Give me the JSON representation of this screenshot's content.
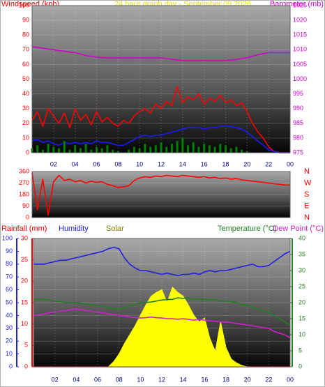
{
  "chart_data": [
    {
      "type": "line",
      "title": "24 hour graph day - September 09 2026",
      "ylabel": "Windspeed (kph)",
      "x": [
        0,
        0.5,
        1,
        1.5,
        2,
        2.5,
        3,
        3.5,
        4,
        4.5,
        5,
        5.5,
        6,
        6.5,
        7,
        7.5,
        8,
        8.5,
        9,
        9.5,
        10,
        10.5,
        11,
        11.5,
        12,
        12.5,
        13,
        13.5,
        14,
        14.5,
        15,
        15.5,
        16,
        16.5,
        17,
        17.5,
        18,
        18.5,
        19,
        19.5,
        20,
        20.5,
        21,
        21.5,
        22,
        22.5,
        23,
        23.5,
        24
      ],
      "xlim": [
        0,
        24
      ],
      "xticks": [
        {
          "value": 2,
          "label": "02"
        },
        {
          "value": 4,
          "label": "04"
        },
        {
          "value": 6,
          "label": "06"
        },
        {
          "value": 8,
          "label": "08"
        },
        10,
        12,
        14,
        16,
        18,
        20,
        22,
        {
          "value": 24,
          "label": "00"
        }
      ],
      "ylim": [
        0,
        100
      ],
      "yticks": [
        0,
        10,
        20,
        30,
        40,
        50,
        60,
        70,
        80,
        90,
        100
      ],
      "y2lim": [
        975,
        1025
      ],
      "y2ticks": [
        975,
        980,
        985,
        990,
        995,
        1000,
        1005,
        1010,
        1015,
        1020,
        1025
      ],
      "grid": true,
      "series": [
        {
          "color": "#ff0000",
          "values": [
            22,
            28,
            18,
            30,
            25,
            20,
            27,
            17,
            30,
            22,
            26,
            19,
            28,
            21,
            24,
            20,
            18,
            22,
            20,
            25,
            28,
            30,
            27,
            33,
            30,
            35,
            32,
            45,
            34,
            38,
            36,
            40,
            33,
            37,
            35,
            39,
            34,
            36,
            32,
            34,
            28,
            20,
            14,
            10,
            4,
            1,
            0,
            0,
            0
          ]
        },
        {
          "color": "#1a1aff",
          "values": [
            8,
            9,
            7,
            8,
            6,
            5,
            7,
            6,
            7,
            6,
            7,
            6,
            8,
            7,
            7,
            6,
            5,
            5,
            7,
            9,
            11,
            12,
            11,
            12,
            12,
            13,
            14,
            15,
            16,
            17,
            17,
            17,
            16,
            17,
            17,
            18,
            18,
            18,
            17,
            16,
            14,
            11,
            8,
            5,
            2,
            1,
            0,
            0,
            0
          ]
        },
        {
          "color": "#008000",
          "style": "bars",
          "values": [
            3,
            5,
            2,
            6,
            4,
            3,
            8,
            2,
            5,
            3,
            6,
            2,
            4,
            3,
            5,
            2,
            1,
            0,
            2,
            4,
            3,
            6,
            4,
            5,
            7,
            4,
            6,
            8,
            10,
            5,
            7,
            4,
            6,
            5,
            4,
            6,
            5,
            3,
            4,
            2,
            1,
            0,
            0,
            0,
            0,
            0,
            0,
            0,
            0
          ]
        },
        {
          "name": "Barometer (mb)",
          "color": "#d000d0",
          "axis": "y2",
          "values": [
            1011,
            1010.8,
            1010.5,
            1010.2,
            1010,
            1009.7,
            1009.5,
            1009.2,
            1009,
            1008.5,
            1008,
            1007.8,
            1007.5,
            1007.3,
            1007.2,
            1007.2,
            1007.2,
            1007.2,
            1007.2,
            1007.2,
            1007.2,
            1007.2,
            1007.2,
            1007.2,
            1007.2,
            1007,
            1006.8,
            1006.5,
            1006.3,
            1006.3,
            1006.3,
            1006.3,
            1006.3,
            1006.3,
            1006.3,
            1006.3,
            1006.3,
            1006.5,
            1006.7,
            1007,
            1007.3,
            1007.8,
            1008.3,
            1008.7,
            1009,
            1009,
            1009,
            1009,
            1009
          ]
        }
      ]
    },
    {
      "type": "line",
      "x": [
        0,
        0.5,
        1,
        1.5,
        2,
        2.5,
        3,
        3.5,
        4,
        4.5,
        5,
        5.5,
        6,
        6.5,
        7,
        7.5,
        8,
        8.5,
        9,
        9.5,
        10,
        10.5,
        11,
        11.5,
        12,
        12.5,
        13,
        13.5,
        14,
        14.5,
        15,
        15.5,
        16,
        16.5,
        17,
        17.5,
        18,
        18.5,
        19,
        19.5,
        20,
        20.5,
        21,
        21.5,
        22,
        22.5,
        23,
        23.5,
        24
      ],
      "xlim": [
        0,
        24
      ],
      "ylim": [
        0,
        360
      ],
      "yticks": [
        0,
        90,
        180,
        270,
        360
      ],
      "y2lim": [
        0,
        360
      ],
      "y2ticks": [
        {
          "value": 360,
          "label": "N"
        },
        {
          "value": 270,
          "label": "W"
        },
        {
          "value": 180,
          "label": "S"
        },
        {
          "value": 90,
          "label": "E"
        },
        {
          "value": 0,
          "label": "N"
        }
      ],
      "grid": true,
      "series": [
        {
          "color": "#ff0000",
          "values": [
            350,
            60,
            300,
            20,
            280,
            330,
            290,
            300,
            280,
            290,
            270,
            285,
            275,
            280,
            260,
            250,
            235,
            240,
            250,
            290,
            310,
            320,
            315,
            325,
            320,
            330,
            325,
            320,
            330,
            325,
            320,
            315,
            320,
            310,
            315,
            305,
            310,
            300,
            305,
            295,
            290,
            285,
            280,
            275,
            270,
            265,
            260,
            255,
            255
          ]
        }
      ]
    },
    {
      "type": "line",
      "x": [
        0,
        0.5,
        1,
        1.5,
        2,
        2.5,
        3,
        3.5,
        4,
        4.5,
        5,
        5.5,
        6,
        6.5,
        7,
        7.5,
        8,
        8.5,
        9,
        9.5,
        10,
        10.5,
        11,
        11.5,
        12,
        12.5,
        13,
        13.5,
        14,
        14.5,
        15,
        15.5,
        16,
        16.5,
        17,
        17.5,
        18,
        18.5,
        19,
        19.5,
        20,
        20.5,
        21,
        21.5,
        22,
        22.5,
        23,
        23.5,
        24
      ],
      "xlim": [
        0,
        24
      ],
      "xticks": [
        {
          "value": 2,
          "label": "02"
        },
        {
          "value": 4,
          "label": "04"
        },
        {
          "value": 6,
          "label": "06"
        },
        {
          "value": 8,
          "label": "08"
        },
        10,
        12,
        14,
        16,
        18,
        20,
        22,
        {
          "value": 24,
          "label": "00"
        }
      ],
      "ylim": [
        0,
        100
      ],
      "yticks": [
        0,
        10,
        20,
        30,
        40,
        50,
        60,
        70,
        80,
        90,
        100
      ],
      "rain_ylim": [
        0,
        30
      ],
      "rain_yticks": [
        0,
        5,
        10,
        15,
        20,
        25,
        30
      ],
      "y2lim": [
        0,
        40
      ],
      "y2ticks": [
        0,
        5,
        10,
        15,
        20,
        25,
        30,
        35,
        40
      ],
      "grid": true,
      "series": [
        {
          "name": "Rainfall (mm)",
          "color": "#ff0000",
          "axis": "rain",
          "values": [
            0,
            0,
            0,
            0,
            0,
            0,
            0,
            0,
            0,
            0,
            0,
            0,
            0,
            0,
            0,
            0,
            0,
            0,
            0,
            0,
            0,
            0,
            0,
            0,
            0,
            0,
            0,
            0,
            0,
            0,
            0,
            0,
            0,
            0,
            0,
            0,
            0,
            0,
            0,
            0,
            0,
            0,
            0,
            0,
            0,
            0,
            0,
            0,
            0
          ]
        },
        {
          "name": "Humidity",
          "color": "#2020e0",
          "values": [
            80,
            80,
            80,
            81,
            82,
            83,
            83,
            84,
            85,
            86,
            87,
            88,
            89,
            90,
            92,
            93,
            92,
            85,
            80,
            77,
            75,
            75,
            74,
            73,
            72,
            73,
            72,
            71,
            72,
            72,
            73,
            72,
            74,
            75,
            74,
            75,
            75,
            76,
            77,
            78,
            79,
            80,
            78,
            78,
            79,
            82,
            85,
            88,
            90
          ]
        },
        {
          "name": "Solar",
          "color": "#ffff00",
          "label_color": "#808000",
          "style": "area",
          "values": [
            0,
            0,
            0,
            0,
            0,
            0,
            0,
            0,
            0,
            0,
            0,
            0,
            0,
            0,
            0,
            4,
            10,
            18,
            25,
            32,
            40,
            48,
            55,
            58,
            60,
            50,
            62,
            58,
            55,
            48,
            40,
            35,
            38,
            22,
            12,
            35,
            15,
            6,
            3,
            1,
            0,
            0,
            0,
            0,
            0,
            0,
            0,
            0,
            0
          ]
        },
        {
          "name": "Temperature (°C)",
          "color": "#208020",
          "axis": "y2",
          "values": [
            21,
            21,
            21,
            20.8,
            20.5,
            20.3,
            20,
            20,
            20,
            19.8,
            19.5,
            19.3,
            19,
            18.8,
            18.5,
            18.2,
            18,
            18.5,
            19,
            19.5,
            20,
            20,
            20.2,
            20.5,
            20.8,
            21,
            21,
            21.5,
            21.3,
            21.5,
            21,
            21.2,
            21,
            20.8,
            21,
            20.5,
            20.5,
            20.2,
            20,
            19.5,
            19,
            18.5,
            18,
            17.5,
            17,
            16,
            15,
            14,
            13
          ]
        },
        {
          "name": "Dew Point (°C)",
          "color": "#d020d0",
          "axis": "y2",
          "values": [
            16,
            16.2,
            16.5,
            16.8,
            17,
            17.3,
            17.5,
            17.8,
            18,
            17.8,
            17.5,
            17.2,
            17,
            16.8,
            16.5,
            16.3,
            16,
            15.8,
            15.5,
            15.3,
            15.2,
            15.3,
            15.5,
            15.3,
            15.2,
            15,
            15,
            14.8,
            15,
            14.8,
            14.5,
            14.8,
            14.5,
            14.3,
            14.2,
            14,
            14,
            13.8,
            13.5,
            13.3,
            13,
            12.8,
            12.5,
            12.2,
            12,
            11,
            10.5,
            10,
            9
          ]
        }
      ]
    }
  ]
}
